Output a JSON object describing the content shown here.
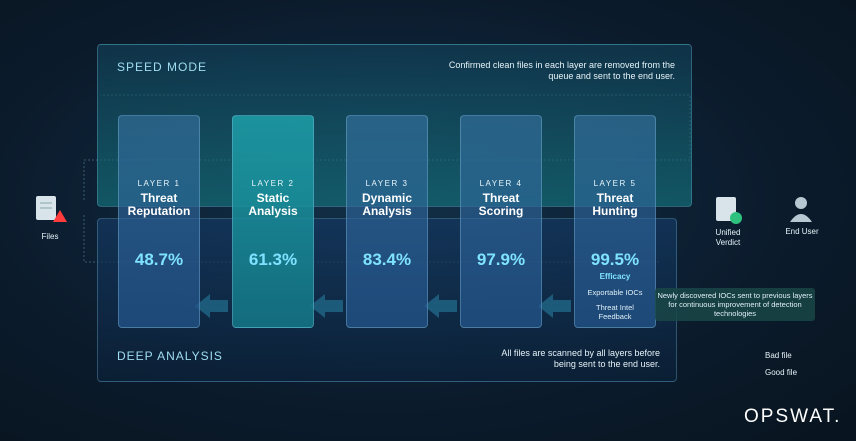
{
  "speed_mode": {
    "title": "SPEED MODE",
    "note": "Confirmed clean files in each layer are removed from the queue and sent to the end user."
  },
  "deep_analysis": {
    "title": "DEEP ANALYSIS",
    "note": "All files are scanned by all layers before being sent to the end user."
  },
  "layers": [
    {
      "tag": "LAYER 1",
      "name": "Threat Reputation",
      "score": "48.7%"
    },
    {
      "tag": "LAYER 2",
      "name": "Static Analysis",
      "score": "61.3%"
    },
    {
      "tag": "LAYER 3",
      "name": "Dynamic Analysis",
      "score": "83.4%"
    },
    {
      "tag": "LAYER 4",
      "name": "Threat Scoring",
      "score": "97.9%"
    },
    {
      "tag": "LAYER 5",
      "name": "Threat Hunting",
      "score": "99.5%",
      "score_label": "Efficacy",
      "outputs": [
        "Exportable IOCs",
        "Threat Intel Feedback"
      ]
    }
  ],
  "files": "Files",
  "verdict": "Unified Verdict",
  "end_user": "End User",
  "feedback_note": "Newly discovered IOCs sent to previous layers for continuous improvement of detection technologies",
  "legend": {
    "bad": "Bad file",
    "good": "Good file"
  },
  "brand": "OPSWAT."
}
